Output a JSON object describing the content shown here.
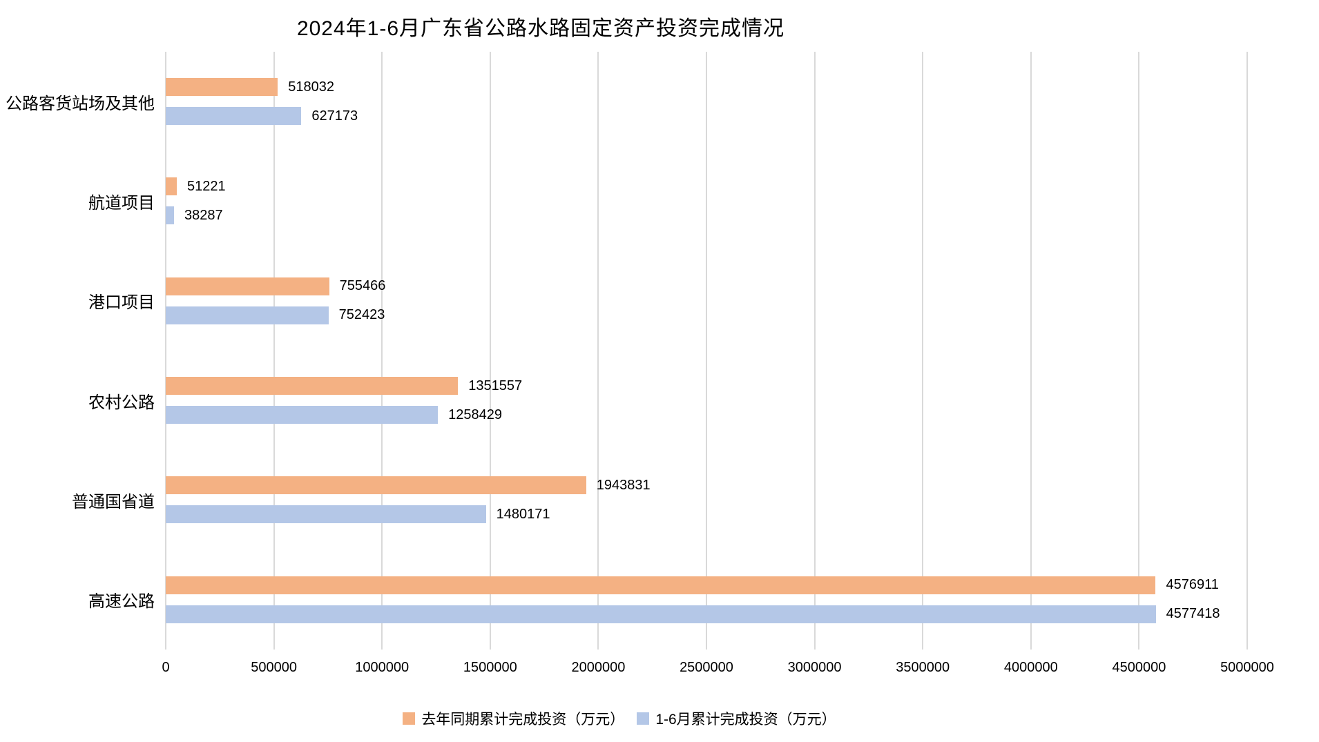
{
  "chart_data": {
    "type": "bar",
    "orientation": "horizontal",
    "title": "2024年1-6月广东省公路水路固定资产投资完成情况",
    "categories_order": "top-to-bottom",
    "categories": [
      "公路客货站场及其他",
      "航道项目",
      "港口项目",
      "农村公路",
      "普通国省道",
      "高速公路"
    ],
    "series": [
      {
        "name": "去年同期累计完成投资（万元）",
        "color": "#F4B183",
        "values": [
          518032,
          51221,
          755466,
          1351557,
          1943831,
          4576911
        ]
      },
      {
        "name": "1-6月累计完成投资（万元）",
        "color": "#B4C7E7",
        "values": [
          627173,
          38287,
          752423,
          1258429,
          1480171,
          4577418
        ]
      }
    ],
    "xlim": [
      0,
      5000000
    ],
    "xticks": [
      0,
      500000,
      1000000,
      1500000,
      2000000,
      2500000,
      3000000,
      3500000,
      4000000,
      4500000,
      5000000
    ],
    "grid": true,
    "gridline_color": "#d9d9d9",
    "text_color": "#000000",
    "background_color": "#ffffff",
    "legend_position": "bottom",
    "value_labels_shown": true
  }
}
